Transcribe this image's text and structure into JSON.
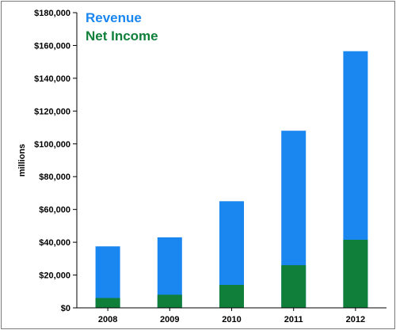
{
  "chart_data": {
    "type": "bar",
    "stacked": false,
    "overlapping": true,
    "categories": [
      "2008",
      "2009",
      "2010",
      "2011",
      "2012"
    ],
    "series": [
      {
        "name": "Revenue",
        "color": "#1a86f0",
        "values": [
          37500,
          43000,
          65000,
          108000,
          156500
        ]
      },
      {
        "name": "Net Income",
        "color": "#0f7f3a",
        "values": [
          6000,
          8000,
          14000,
          26000,
          41500
        ]
      }
    ],
    "ylabel": "millions",
    "xlabel": "",
    "ylim": [
      0,
      180000
    ],
    "yticks": [
      0,
      20000,
      40000,
      60000,
      80000,
      100000,
      120000,
      140000,
      160000,
      180000
    ],
    "ytick_labels": [
      "$0",
      "$20,000",
      "$40,000",
      "$60,000",
      "$80,000",
      "$100,000",
      "$120,000",
      "$140,000",
      "$160,000",
      "$180,000"
    ],
    "legend_position": "top-left",
    "grid": false
  }
}
